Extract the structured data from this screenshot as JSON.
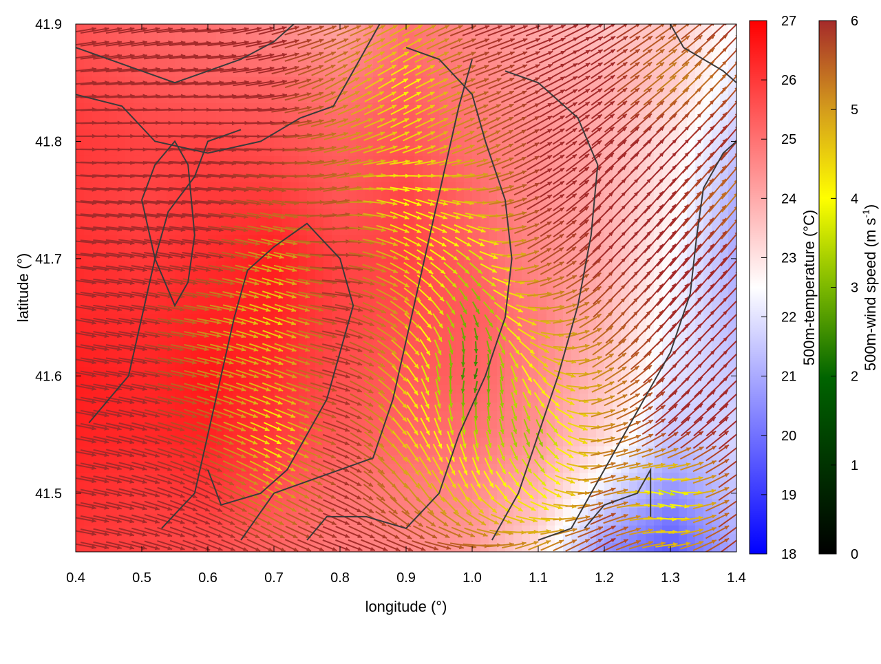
{
  "chart_data": {
    "type": "heatmap",
    "subtype": "temperature field with wind vector overlay and contour lines",
    "xlabel": "longitude (°)",
    "ylabel": "latitude (°)",
    "xlim": [
      0.4,
      1.4
    ],
    "ylim": [
      41.45,
      41.9
    ],
    "xticks": [
      0.4,
      0.5,
      0.6,
      0.7,
      0.8,
      0.9,
      1.0,
      1.1,
      1.2,
      1.3,
      1.4
    ],
    "xtick_labels": [
      "0.4",
      "0.5",
      "0.6",
      "0.7",
      "0.8",
      "0.9",
      "1.0",
      "1.1",
      "1.2",
      "1.3",
      "1.4"
    ],
    "yticks": [
      41.5,
      41.6,
      41.7,
      41.8,
      41.9
    ],
    "ytick_labels": [
      "41.5",
      "41.6",
      "41.7",
      "41.8",
      "41.9"
    ],
    "temperature_colorbar": {
      "label": "500m-temperature (°C)",
      "range": [
        18,
        27
      ],
      "ticks": [
        18,
        19,
        20,
        21,
        22,
        23,
        24,
        25,
        26,
        27
      ],
      "tick_labels": [
        "18",
        "19",
        "20",
        "21",
        "22",
        "23",
        "24",
        "25",
        "26",
        "27"
      ],
      "colors": [
        "#0000ff",
        "#ffffff",
        "#ff0000"
      ]
    },
    "wind_colorbar": {
      "label": "500m-wind speed (m s",
      "label_sup": "-1",
      "label_end": ")",
      "range": [
        0,
        6
      ],
      "ticks": [
        0,
        1,
        2,
        3,
        4,
        5,
        6
      ],
      "tick_labels": [
        "0",
        "1",
        "2",
        "3",
        "4",
        "5",
        "6"
      ],
      "colors": [
        "#000000",
        "#006400",
        "#7cb800",
        "#ffff00",
        "#d49c1c",
        "#a52a2a"
      ]
    },
    "temperature_field": {
      "x": [
        0.4,
        0.5,
        0.6,
        0.7,
        0.8,
        0.9,
        1.0,
        1.1,
        1.2,
        1.3,
        1.4
      ],
      "y": [
        41.9,
        41.85,
        41.8,
        41.75,
        41.7,
        41.65,
        41.6,
        41.55,
        41.5,
        41.45
      ],
      "values": [
        [
          25.5,
          25.2,
          25.0,
          24.5,
          24.0,
          25.0,
          24.5,
          24.0,
          23.5,
          23.5,
          22.5
        ],
        [
          25.8,
          25.5,
          25.3,
          25.2,
          24.8,
          25.3,
          24.8,
          24.2,
          24.0,
          23.5,
          22.0
        ],
        [
          26.0,
          25.8,
          25.8,
          25.6,
          25.3,
          25.5,
          25.0,
          24.5,
          24.0,
          23.0,
          21.5
        ],
        [
          26.0,
          25.8,
          26.0,
          26.0,
          25.5,
          25.8,
          25.2,
          24.5,
          24.0,
          22.8,
          21.0
        ],
        [
          26.2,
          26.0,
          26.2,
          26.5,
          25.8,
          25.8,
          25.3,
          24.6,
          24.0,
          22.5,
          21.0
        ],
        [
          26.3,
          26.2,
          26.4,
          26.4,
          25.8,
          25.6,
          25.4,
          24.8,
          23.8,
          22.3,
          21.2
        ],
        [
          26.5,
          26.3,
          26.6,
          26.2,
          25.6,
          25.4,
          25.3,
          24.6,
          23.6,
          22.0,
          21.5
        ],
        [
          26.4,
          26.3,
          26.4,
          26.0,
          25.4,
          25.2,
          25.0,
          24.4,
          23.2,
          21.5,
          21.8
        ],
        [
          26.2,
          26.0,
          26.0,
          25.6,
          25.0,
          24.8,
          24.6,
          23.8,
          22.0,
          20.5,
          21.5
        ],
        [
          26.0,
          25.8,
          25.6,
          25.2,
          24.8,
          24.6,
          24.2,
          23.0,
          20.5,
          19.5,
          21.0
        ]
      ]
    },
    "wind_field": {
      "x": [
        0.4,
        0.5,
        0.6,
        0.7,
        0.8,
        0.9,
        1.0,
        1.1,
        1.2,
        1.3,
        1.4
      ],
      "y": [
        41.9,
        41.85,
        41.8,
        41.75,
        41.7,
        41.65,
        41.6,
        41.55,
        41.5,
        41.45
      ],
      "speed": [
        [
          6.0,
          6.0,
          6.0,
          6.0,
          5.5,
          4.5,
          6.0,
          6.0,
          6.0,
          5.5,
          6.0
        ],
        [
          6.0,
          6.0,
          6.0,
          6.0,
          5.0,
          3.5,
          5.5,
          6.0,
          6.0,
          5.0,
          5.5
        ],
        [
          6.0,
          6.0,
          6.0,
          6.0,
          5.0,
          4.0,
          5.0,
          6.0,
          6.0,
          6.0,
          6.0
        ],
        [
          6.0,
          6.0,
          6.0,
          5.5,
          5.5,
          3.5,
          4.5,
          6.0,
          6.0,
          6.0,
          5.0
        ],
        [
          6.0,
          6.0,
          6.0,
          4.5,
          6.0,
          4.0,
          3.0,
          5.5,
          6.0,
          6.0,
          6.0
        ],
        [
          6.0,
          6.0,
          5.0,
          4.0,
          6.0,
          4.5,
          2.0,
          4.5,
          5.5,
          6.0,
          6.0
        ],
        [
          6.0,
          6.0,
          5.0,
          4.5,
          6.0,
          4.0,
          1.5,
          4.0,
          5.0,
          6.0,
          6.0
        ],
        [
          6.0,
          6.0,
          5.5,
          3.5,
          6.0,
          4.0,
          3.0,
          2.5,
          5.0,
          6.0,
          6.0
        ],
        [
          6.0,
          6.0,
          6.0,
          4.5,
          6.0,
          5.0,
          4.0,
          3.5,
          5.5,
          3.0,
          6.0
        ],
        [
          6.0,
          6.0,
          6.0,
          6.0,
          6.0,
          6.0,
          5.5,
          5.0,
          6.0,
          4.5,
          6.0
        ]
      ],
      "direction_toward_deg": [
        [
          80,
          80,
          85,
          75,
          70,
          60,
          70,
          70,
          60,
          55,
          45
        ],
        [
          85,
          85,
          85,
          80,
          60,
          60,
          70,
          65,
          55,
          50,
          40
        ],
        [
          90,
          90,
          95,
          90,
          75,
          65,
          65,
          60,
          50,
          45,
          40
        ],
        [
          95,
          95,
          95,
          100,
          80,
          110,
          95,
          60,
          45,
          40,
          40
        ],
        [
          95,
          100,
          100,
          105,
          90,
          120,
          130,
          60,
          45,
          40,
          40
        ],
        [
          100,
          100,
          100,
          110,
          100,
          130,
          160,
          100,
          45,
          40,
          45
        ],
        [
          100,
          100,
          105,
          110,
          105,
          140,
          200,
          140,
          60,
          45,
          45
        ],
        [
          100,
          105,
          110,
          115,
          110,
          145,
          170,
          160,
          80,
          50,
          50
        ],
        [
          100,
          105,
          115,
          120,
          115,
          140,
          150,
          130,
          70,
          110,
          50
        ],
        [
          100,
          105,
          110,
          115,
          110,
          110,
          90,
          60,
          60,
          80,
          50
        ]
      ]
    },
    "contour_lines": [
      {
        "points": [
          [
            0.4,
            41.88
          ],
          [
            0.45,
            41.87
          ],
          [
            0.5,
            41.86
          ],
          [
            0.55,
            41.85
          ],
          [
            0.6,
            41.86
          ],
          [
            0.65,
            41.87
          ],
          [
            0.7,
            41.885
          ],
          [
            0.73,
            41.9
          ]
        ]
      },
      {
        "points": [
          [
            0.4,
            41.84
          ],
          [
            0.47,
            41.83
          ],
          [
            0.52,
            41.8
          ],
          [
            0.6,
            41.79
          ],
          [
            0.68,
            41.8
          ],
          [
            0.74,
            41.82
          ],
          [
            0.79,
            41.83
          ],
          [
            0.82,
            41.86
          ],
          [
            0.86,
            41.9
          ]
        ]
      },
      {
        "points": [
          [
            0.42,
            41.56
          ],
          [
            0.48,
            41.6
          ],
          [
            0.5,
            41.65
          ],
          [
            0.52,
            41.7
          ],
          [
            0.54,
            41.74
          ],
          [
            0.58,
            41.77
          ],
          [
            0.6,
            41.8
          ],
          [
            0.65,
            41.81
          ]
        ]
      },
      {
        "points": [
          [
            0.5,
            41.75
          ],
          [
            0.52,
            41.78
          ],
          [
            0.55,
            41.8
          ],
          [
            0.57,
            41.78
          ],
          [
            0.58,
            41.72
          ],
          [
            0.57,
            41.68
          ],
          [
            0.55,
            41.66
          ],
          [
            0.52,
            41.7
          ],
          [
            0.5,
            41.75
          ]
        ]
      },
      {
        "points": [
          [
            0.53,
            41.47
          ],
          [
            0.58,
            41.5
          ],
          [
            0.6,
            41.55
          ],
          [
            0.62,
            41.6
          ],
          [
            0.64,
            41.65
          ],
          [
            0.66,
            41.69
          ],
          [
            0.7,
            41.71
          ],
          [
            0.75,
            41.73
          ],
          [
            0.8,
            41.7
          ],
          [
            0.82,
            41.66
          ],
          [
            0.8,
            41.62
          ],
          [
            0.78,
            41.58
          ],
          [
            0.75,
            41.55
          ],
          [
            0.72,
            41.52
          ],
          [
            0.68,
            41.5
          ],
          [
            0.62,
            41.49
          ],
          [
            0.6,
            41.52
          ]
        ]
      },
      {
        "points": [
          [
            0.65,
            41.46
          ],
          [
            0.7,
            41.5
          ],
          [
            0.75,
            41.51
          ],
          [
            0.8,
            41.52
          ],
          [
            0.85,
            41.53
          ],
          [
            0.88,
            41.58
          ],
          [
            0.9,
            41.63
          ],
          [
            0.92,
            41.68
          ],
          [
            0.94,
            41.73
          ],
          [
            0.96,
            41.78
          ],
          [
            0.98,
            41.83
          ],
          [
            1.0,
            41.87
          ]
        ]
      },
      {
        "points": [
          [
            0.75,
            41.46
          ],
          [
            0.78,
            41.48
          ],
          [
            0.84,
            41.48
          ],
          [
            0.9,
            41.47
          ],
          [
            0.95,
            41.5
          ],
          [
            0.98,
            41.55
          ],
          [
            1.02,
            41.6
          ],
          [
            1.05,
            41.65
          ],
          [
            1.06,
            41.7
          ],
          [
            1.05,
            41.75
          ],
          [
            1.02,
            41.8
          ],
          [
            1.0,
            41.84
          ],
          [
            0.95,
            41.87
          ],
          [
            0.9,
            41.88
          ]
        ]
      },
      {
        "points": [
          [
            1.03,
            41.46
          ],
          [
            1.07,
            41.5
          ],
          [
            1.1,
            41.55
          ],
          [
            1.13,
            41.6
          ],
          [
            1.16,
            41.66
          ],
          [
            1.18,
            41.72
          ],
          [
            1.19,
            41.78
          ],
          [
            1.16,
            41.82
          ],
          [
            1.1,
            41.85
          ],
          [
            1.05,
            41.86
          ]
        ]
      },
      {
        "points": [
          [
            1.1,
            41.46
          ],
          [
            1.15,
            41.47
          ],
          [
            1.2,
            41.52
          ],
          [
            1.25,
            41.57
          ],
          [
            1.3,
            41.62
          ],
          [
            1.33,
            41.67
          ],
          [
            1.34,
            41.72
          ],
          [
            1.35,
            41.76
          ],
          [
            1.38,
            41.79
          ],
          [
            1.4,
            41.8
          ]
        ]
      },
      {
        "points": [
          [
            1.17,
            41.47
          ],
          [
            1.2,
            41.49
          ],
          [
            1.25,
            41.5
          ],
          [
            1.27,
            41.52
          ],
          [
            1.27,
            41.48
          ]
        ]
      },
      {
        "points": [
          [
            1.3,
            41.9
          ],
          [
            1.32,
            41.88
          ],
          [
            1.35,
            41.87
          ],
          [
            1.38,
            41.86
          ],
          [
            1.4,
            41.85
          ]
        ]
      }
    ]
  }
}
